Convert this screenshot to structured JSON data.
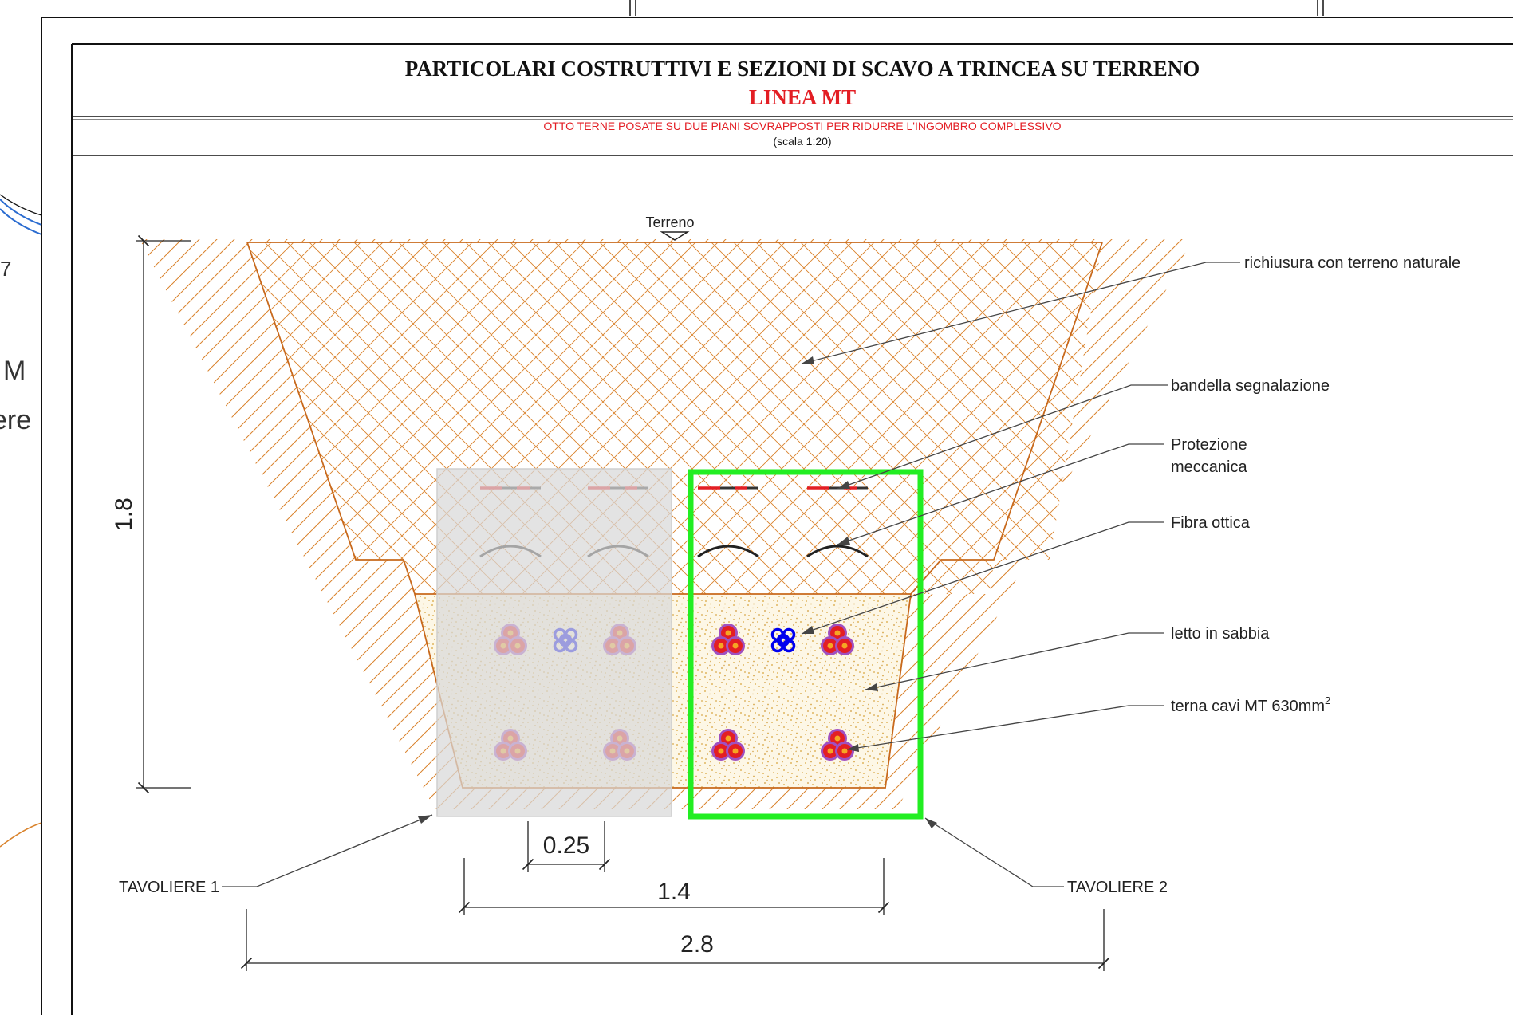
{
  "header": {
    "title": "PARTICOLARI COSTRUTTIVI E SEZIONI DI SCAVO A TRINCEA SU TERRENO",
    "subtitle": "LINEA MT",
    "description": "OTTO TERNE POSATE SU DUE PIANI SOVRAPPOSTI PER RIDURRE L'INGOMBRO COMPLESSIVO",
    "scale": "(scala 1:20)"
  },
  "ground_label": "Terreno",
  "background_fragments": [
    "M",
    "ere",
    "7"
  ],
  "labels": {
    "backfill": "richiusura con terreno naturale",
    "warning_tape": "bandella segnalazione",
    "protection_line1": "Protezione",
    "protection_line2": "meccanica",
    "fiber": "Fibra ottica",
    "sand_bed": "letto in sabbia",
    "cables_text": "terna cavi MT 630mm",
    "cables_sup": "2",
    "tavoliere_1": "TAVOLIERE 1",
    "tavoliere_2": "TAVOLIERE 2"
  },
  "dimensions": {
    "depth": "1.8",
    "spacing": "0.25",
    "bottom_width": "1.4",
    "top_width": "2.8"
  },
  "colors": {
    "soil_hatch": "#d9822b",
    "sand": "#e0b660",
    "title_red": "#e31e24",
    "highlight": "#22ee22",
    "cable_red": "#e31e24",
    "cable_ring": "#a050c0",
    "fiber_blue": "#0000ee"
  }
}
